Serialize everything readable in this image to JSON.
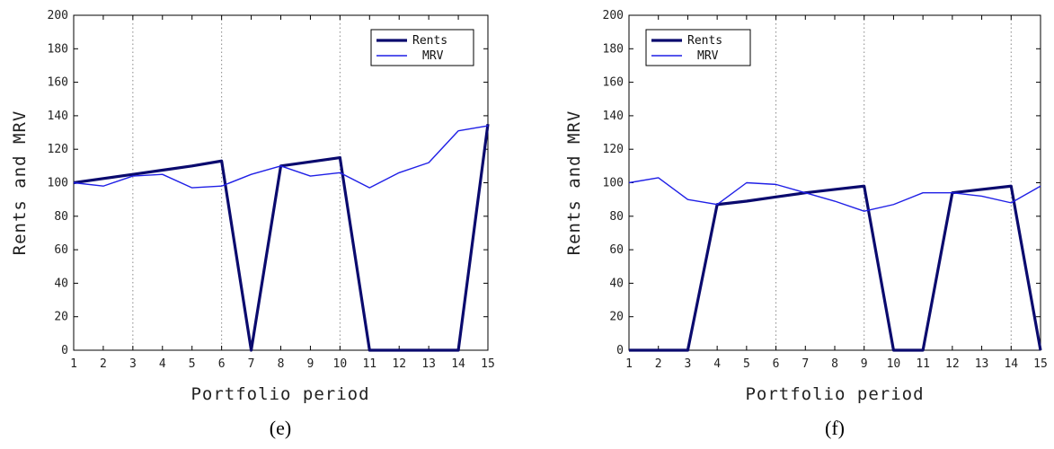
{
  "chart_data": [
    {
      "type": "line",
      "caption": "(e)",
      "xlabel": "Portfolio period",
      "ylabel": "Rents and MRV",
      "x": [
        1,
        2,
        3,
        4,
        5,
        6,
        7,
        8,
        9,
        10,
        11,
        12,
        13,
        14,
        15
      ],
      "xlim": [
        1,
        15
      ],
      "ylim": [
        0,
        200
      ],
      "yticks": [
        0,
        20,
        40,
        60,
        80,
        100,
        120,
        140,
        160,
        180,
        200
      ],
      "vlines": [
        3,
        6,
        10
      ],
      "grid": false,
      "legend_placement": "top-right",
      "series": [
        {
          "name": "Rents",
          "values": [
            100,
            102.5,
            105,
            107.5,
            110,
            113,
            0,
            110,
            112.5,
            115,
            0,
            0,
            0,
            0,
            135
          ]
        },
        {
          "name": "MRV",
          "values": [
            100,
            98,
            104,
            105,
            97,
            98,
            105,
            110,
            104,
            106,
            97,
            106,
            112,
            131,
            134
          ]
        }
      ]
    },
    {
      "type": "line",
      "caption": "(f)",
      "xlabel": "Portfolio period",
      "ylabel": "Rents and MRV",
      "x": [
        1,
        2,
        3,
        4,
        5,
        6,
        7,
        8,
        9,
        10,
        11,
        12,
        13,
        14,
        15
      ],
      "xlim": [
        1,
        15
      ],
      "ylim": [
        0,
        200
      ],
      "yticks": [
        0,
        20,
        40,
        60,
        80,
        100,
        120,
        140,
        160,
        180,
        200
      ],
      "vlines": [
        6,
        9,
        14
      ],
      "grid": false,
      "legend_placement": "top-left",
      "series": [
        {
          "name": "Rents",
          "values": [
            0,
            0,
            0,
            87,
            89,
            91.5,
            94,
            96,
            98,
            0,
            0,
            94,
            96,
            98,
            0
          ]
        },
        {
          "name": "MRV",
          "values": [
            100,
            103,
            90,
            87,
            100,
            99,
            94,
            89,
            83,
            87,
            94,
            94,
            92,
            88,
            98
          ]
        }
      ]
    }
  ],
  "style": {
    "rents_color": "#0a0a6e",
    "mrv_color": "#1f1fe6",
    "axis_color": "#000000",
    "vline_color": "#888888"
  }
}
